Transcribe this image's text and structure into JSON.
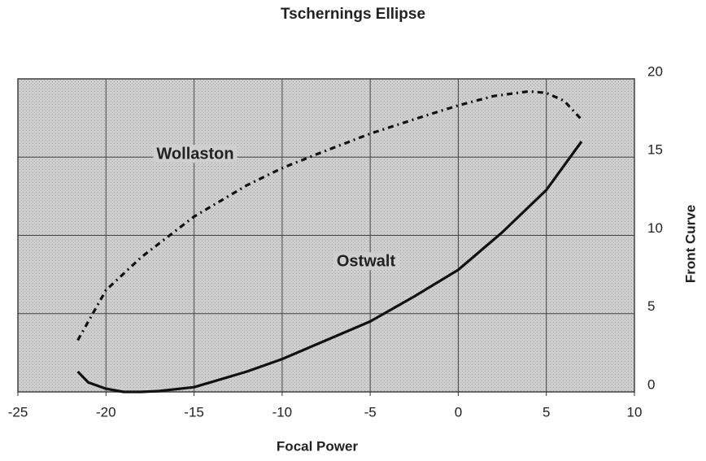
{
  "chart_data": {
    "type": "line",
    "title": "Tschernings Ellipse",
    "x_label": "Focal Power",
    "y_label": "Front Curve",
    "xlim": [
      -25,
      10
    ],
    "xticks": [
      -25,
      -20,
      -15,
      -10,
      -5,
      0,
      5,
      10
    ],
    "ylim": [
      0,
      20
    ],
    "yticks": [
      0,
      5,
      10,
      15,
      20
    ],
    "y_axis_side": "right",
    "grid": true,
    "series": [
      {
        "name": "Wollaston",
        "color": "#111111",
        "dash": "dash-dot",
        "x": [
          -21.6,
          -20,
          -18,
          -15,
          -12,
          -10,
          -8,
          -5,
          -2,
          0,
          2,
          4,
          5,
          6,
          7
        ],
        "values": [
          3.3,
          6.5,
          8.6,
          11.2,
          13.2,
          14.3,
          15.2,
          16.5,
          17.6,
          18.3,
          18.9,
          19.2,
          19.1,
          18.6,
          17.4
        ]
      },
      {
        "name": "Ostwalt",
        "color": "#111111",
        "dash": "solid",
        "x": [
          -21.6,
          -21,
          -20,
          -19,
          -18,
          -17,
          -15,
          -12,
          -10,
          -7.5,
          -5,
          -2.5,
          0,
          2.5,
          5,
          7
        ],
        "values": [
          1.3,
          0.6,
          0.2,
          0.0,
          0.0,
          0.05,
          0.3,
          1.3,
          2.1,
          3.3,
          4.5,
          6.1,
          7.8,
          10.2,
          12.9,
          16.0
        ]
      }
    ]
  }
}
